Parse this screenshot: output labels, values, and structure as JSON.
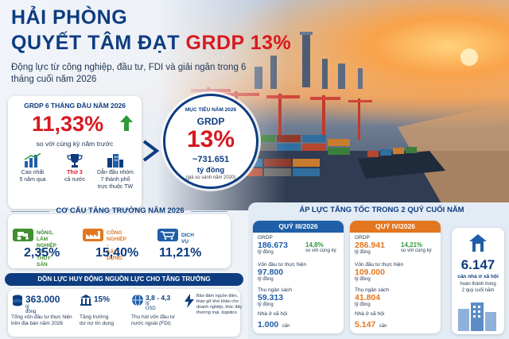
{
  "header": {
    "title_line1": "HẢI PHÒNG",
    "title_line2_prefix": "QUYẾT TÂM ĐẠT ",
    "title_line2_accent": "GRDP 13%",
    "subtitle": "Động lực từ công nghiệp, đầu tư, FDI và giải ngân trong 6 tháng cuối năm 2026"
  },
  "grdp_card": {
    "heading": "GRDP 6 THÁNG ĐẦU NĂM 2026",
    "value": "11,33%",
    "comparison": "so với cùng kỳ năm trước",
    "stats": [
      {
        "icon": "chart-icon",
        "lines": [
          "Cao nhất",
          "5 năm qua"
        ]
      },
      {
        "icon": "trophy-icon",
        "highlight": "Thứ 3",
        "lines": [
          "cả nước"
        ]
      },
      {
        "icon": "buildings-icon",
        "lines": [
          "Dẫn đầu nhóm",
          "7 thành phố",
          "trực thuộc TW"
        ]
      }
    ]
  },
  "target": {
    "label": "MỤC TIÊU NĂM 2026",
    "metric": "GRDP",
    "value": "13%",
    "amount": "~731.651",
    "unit": "tỷ đồng",
    "note": "(giá so sánh năm 2020)"
  },
  "structure": {
    "title": "CƠ CẤU TĂNG TRƯỞNG NĂM 2026",
    "sectors": [
      {
        "name_l1": "NÔNG, LÂM NGHIỆP",
        "name_l2": "VÀ THỦY SẢN",
        "value": "2,35%",
        "color": "#3f8f2f"
      },
      {
        "name_l1": "CÔNG NGHIỆP -",
        "name_l2": "XÂY DỰNG",
        "value": "15,40%",
        "color": "#e2771f"
      },
      {
        "name_l1": "DỊCH VỤ",
        "name_l2": "",
        "value": "11,21%",
        "color": "#1f5fa8"
      }
    ]
  },
  "mobilization": {
    "title": "DỒN LỰC HUY ĐỘNG NGUỒN LỰC CHO TĂNG TRƯỞNG",
    "items": [
      {
        "value": "363.000",
        "unit": "tỷ đồng",
        "desc_l1": "Tổng vốn đầu tư thực hiện",
        "desc_l2": "trên địa bàn năm 2026",
        "desc_l3": ""
      },
      {
        "value": "15%",
        "unit": "",
        "desc_l1": "Tăng trưởng",
        "desc_l2": "dư nợ tín dụng",
        "desc_l3": ""
      },
      {
        "value": "3,8 - 4,3",
        "unit": "tỷ USD",
        "desc_l1": "Thu hút vốn đầu tư",
        "desc_l2": "nước ngoài (FDI)",
        "desc_l3": ""
      },
      {
        "value": "",
        "unit": "",
        "desc_l1": "Bảo đảm nguồn điện,",
        "desc_l2": "tháo gỡ khó khăn cho",
        "desc_l3": "doanh nghiệp, thúc đẩy thương mại, logistics"
      }
    ]
  },
  "pressure": {
    "title": "ÁP LỰC TĂNG TỐC TRONG 2 QUÝ CUỐI NĂM",
    "quarters": [
      {
        "name": "QUÝ III/2026",
        "color": "#1f5fa8",
        "grdp_label": "GRDP",
        "grdp_value": "186.673",
        "grdp_unit": "tỷ đồng",
        "growth": "14,8%",
        "growth_note": "so với cùng kỳ",
        "invest_label": "Vốn đầu tư thực hiện",
        "invest_value": "97.800",
        "invest_unit": "tỷ đồng",
        "budget_label": "Thu ngân sách",
        "budget_value": "59.313",
        "budget_unit": "tỷ đồng",
        "housing_label": "Nhà ở xã hội",
        "housing_value": "1.000",
        "housing_unit": "căn"
      },
      {
        "name": "QUÝ IV/2026",
        "color": "#e2771f",
        "grdp_label": "GRDP",
        "grdp_value": "286.941",
        "grdp_unit": "tỷ đồng",
        "growth": "14,21%",
        "growth_note": "so với cùng kỳ",
        "invest_label": "Vốn đầu tư thực hiện",
        "invest_value": "109.000",
        "invest_unit": "tỷ đồng",
        "budget_label": "Thu ngân sách",
        "budget_value": "41.804",
        "budget_unit": "tỷ đồng",
        "housing_label": "Nhà ở xã hội",
        "housing_value": "5.147",
        "housing_unit": "căn"
      }
    ]
  },
  "housing": {
    "value": "6.147",
    "label": "căn nhà ở xã hội",
    "desc_l1": "hoàn thành trong",
    "desc_l2": "2 quý cuối năm"
  },
  "colors": {
    "navy": "#0d3c80",
    "red": "#d71920",
    "green": "#2e9a3a",
    "orange": "#e2771f",
    "blue": "#1f5fa8"
  }
}
